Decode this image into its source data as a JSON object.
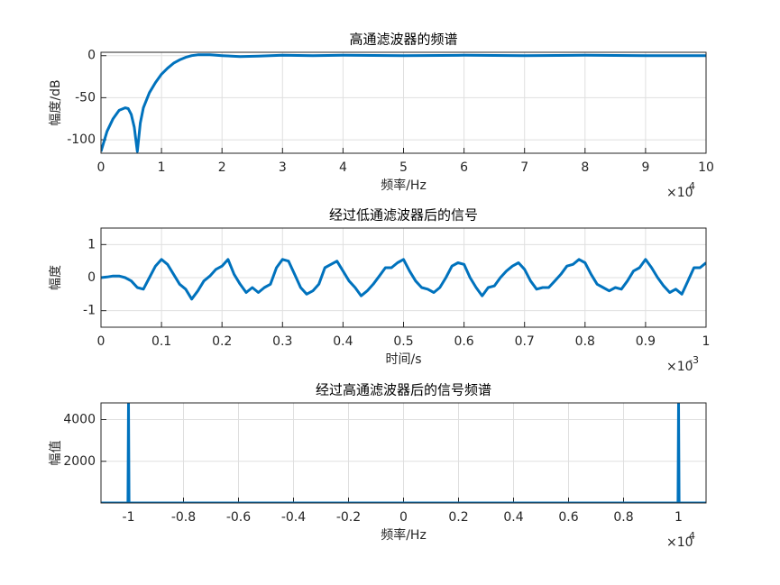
{
  "chart_data": [
    {
      "type": "line",
      "title": "高通滤波器的频谱",
      "xlabel": "频率/Hz",
      "ylabel": "幅度/dB",
      "x_multiplier": {
        "base": "×10",
        "exponent": "4"
      },
      "color": "#0072bd",
      "grid": true,
      "xlim": [
        0,
        10
      ],
      "ylim": [
        -116,
        4
      ],
      "xticks": [
        0,
        1,
        2,
        3,
        4,
        5,
        6,
        7,
        8,
        9,
        10
      ],
      "yticks": [
        -100,
        -50,
        0
      ],
      "x": [
        0,
        0.1,
        0.2,
        0.3,
        0.4,
        0.45,
        0.5,
        0.55,
        0.6,
        0.65,
        0.7,
        0.8,
        0.9,
        1.0,
        1.1,
        1.2,
        1.3,
        1.4,
        1.5,
        1.6,
        1.8,
        2.0,
        2.3,
        2.6,
        3,
        3.5,
        4,
        5,
        6,
        7,
        8,
        9,
        10
      ],
      "values": [
        -114,
        -90,
        -75,
        -65,
        -62,
        -63,
        -70,
        -85,
        -114,
        -80,
        -62,
        -44,
        -32,
        -22,
        -15,
        -9,
        -5,
        -2,
        0,
        1,
        1,
        0,
        -1,
        -0.5,
        0.5,
        0,
        0.5,
        0,
        0.5,
        0,
        0.5,
        0,
        0
      ]
    },
    {
      "type": "line",
      "title": "经过低通滤波器后的信号",
      "xlabel": "时间/s",
      "ylabel": "幅度",
      "x_multiplier": {
        "base": "×10",
        "exponent": "-3"
      },
      "color": "#0072bd",
      "grid": true,
      "xlim": [
        0,
        1
      ],
      "ylim": [
        -1.5,
        1.5
      ],
      "xticks": [
        0,
        0.1,
        0.2,
        0.3,
        0.4,
        0.5,
        0.6,
        0.7,
        0.8,
        0.9,
        1
      ],
      "yticks": [
        -1,
        0,
        1
      ],
      "x": [
        0,
        0.01,
        0.02,
        0.03,
        0.04,
        0.05,
        0.06,
        0.07,
        0.08,
        0.09,
        0.1,
        0.11,
        0.12,
        0.13,
        0.14,
        0.15,
        0.16,
        0.17,
        0.18,
        0.19,
        0.2,
        0.21,
        0.22,
        0.23,
        0.24,
        0.25,
        0.26,
        0.27,
        0.28,
        0.29,
        0.3,
        0.31,
        0.32,
        0.33,
        0.34,
        0.35,
        0.36,
        0.37,
        0.38,
        0.39,
        0.4,
        0.41,
        0.42,
        0.43,
        0.44,
        0.45,
        0.46,
        0.47,
        0.48,
        0.49,
        0.5,
        0.51,
        0.52,
        0.53,
        0.54,
        0.55,
        0.56,
        0.57,
        0.58,
        0.59,
        0.6,
        0.61,
        0.62,
        0.63,
        0.64,
        0.65,
        0.66,
        0.67,
        0.68,
        0.69,
        0.7,
        0.71,
        0.72,
        0.73,
        0.74,
        0.75,
        0.76,
        0.77,
        0.78,
        0.79,
        0.8,
        0.81,
        0.82,
        0.83,
        0.84,
        0.85,
        0.86,
        0.87,
        0.88,
        0.89,
        0.9,
        0.91,
        0.92,
        0.93,
        0.94,
        0.95,
        0.96,
        0.97,
        0.98,
        0.99,
        1
      ],
      "values": [
        0,
        0.02,
        0.05,
        0.05,
        0,
        -0.1,
        -0.3,
        -0.35,
        0,
        0.35,
        0.55,
        0.4,
        0.1,
        -0.2,
        -0.35,
        -0.65,
        -0.4,
        -0.1,
        0.05,
        0.25,
        0.35,
        0.55,
        0.1,
        -0.2,
        -0.45,
        -0.3,
        -0.45,
        -0.3,
        -0.2,
        0.3,
        0.55,
        0.5,
        0.1,
        -0.3,
        -0.5,
        -0.4,
        -0.2,
        0.3,
        0.4,
        0.5,
        0.2,
        -0.1,
        -0.3,
        -0.55,
        -0.4,
        -0.2,
        0.05,
        0.3,
        0.3,
        0.45,
        0.55,
        0.2,
        -0.1,
        -0.3,
        -0.35,
        -0.45,
        -0.3,
        0,
        0.35,
        0.45,
        0.4,
        0,
        -0.3,
        -0.55,
        -0.3,
        -0.25,
        0,
        0.2,
        0.35,
        0.45,
        0.25,
        -0.1,
        -0.35,
        -0.3,
        -0.3,
        -0.1,
        0.1,
        0.35,
        0.4,
        0.55,
        0.45,
        0.1,
        -0.2,
        -0.3,
        -0.4,
        -0.3,
        -0.35,
        -0.1,
        0.2,
        0.3,
        0.55,
        0.3,
        0,
        -0.25,
        -0.45,
        -0.35,
        -0.5,
        -0.1,
        0.3,
        0.3,
        0.45
      ]
    },
    {
      "type": "line",
      "title": "经过高通滤波器后的信号频谱",
      "xlabel": "频率/Hz",
      "ylabel": "幅值",
      "x_multiplier": {
        "base": "×10",
        "exponent": "4"
      },
      "color": "#0072bd",
      "grid": true,
      "xlim": [
        -1.1,
        1.1
      ],
      "ylim": [
        0,
        4800
      ],
      "xticks": [
        -1,
        -0.8,
        -0.6,
        -0.4,
        -0.2,
        0,
        0.2,
        0.4,
        0.6,
        0.8,
        1
      ],
      "yticks": [
        2000,
        4000
      ],
      "x": [
        -1.1,
        -1.002,
        -1,
        -0.998,
        0.998,
        1,
        1.002,
        1.1
      ],
      "values": [
        0,
        0,
        4800,
        0,
        0,
        4800,
        0,
        0
      ]
    }
  ]
}
